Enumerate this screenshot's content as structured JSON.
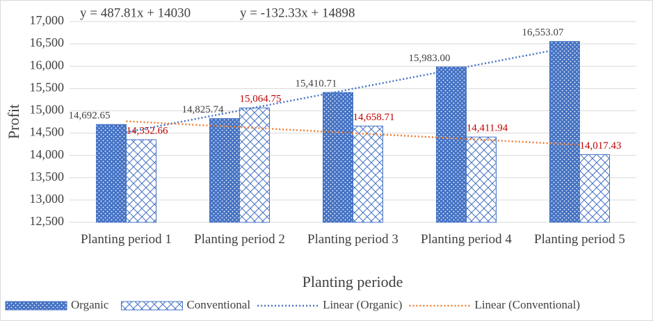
{
  "chart_data": {
    "type": "bar",
    "y_axis_label": "Profit",
    "x_axis_label": "Planting periode",
    "categories": [
      "Planting period 1",
      "Planting period 2",
      "Planting period 3",
      "Planting period 4",
      "Planting period 5"
    ],
    "series": [
      {
        "name": "Organic",
        "color": "#4472c4",
        "values": [
          14692.65,
          14825.74,
          15410.71,
          15983.0,
          16553.07
        ],
        "value_labels": [
          "14,692.65",
          "14,825.74",
          "15,410.71",
          "15,983.00",
          "16,553.07"
        ],
        "label_color": "#404040"
      },
      {
        "name": "Conventional",
        "color": "#4472c4",
        "values": [
          14352.66,
          15064.75,
          14658.71,
          14411.94,
          14017.43
        ],
        "value_labels": [
          "14,352.66",
          "15,064.75",
          "14,658.71",
          "14,411.94",
          "14,017.43"
        ],
        "label_color": "#c00000"
      }
    ],
    "trendlines": [
      {
        "name": "Linear (Organic)",
        "color": "#4472c4",
        "slope": 487.81,
        "intercept": 14030,
        "equation": "y = 487.81x + 14030"
      },
      {
        "name": "Linear (Conventional)",
        "color": "#ed7d31",
        "slope": -132.33,
        "intercept": 14898,
        "equation": "y = -132.33x + 14898"
      }
    ],
    "ylim": [
      12500,
      17000
    ],
    "yticks": [
      {
        "value": 12500,
        "label": "12,500"
      },
      {
        "value": 13000,
        "label": "13,000"
      },
      {
        "value": 13500,
        "label": "13,500"
      },
      {
        "value": 14000,
        "label": "14,000"
      },
      {
        "value": 14500,
        "label": "14,500"
      },
      {
        "value": 15000,
        "label": "15,000"
      },
      {
        "value": 15500,
        "label": "15,500"
      },
      {
        "value": 16000,
        "label": "16,000"
      },
      {
        "value": 16500,
        "label": "16,500"
      },
      {
        "value": 17000,
        "label": "17,000"
      }
    ],
    "grid": true,
    "legend": "bottom"
  }
}
